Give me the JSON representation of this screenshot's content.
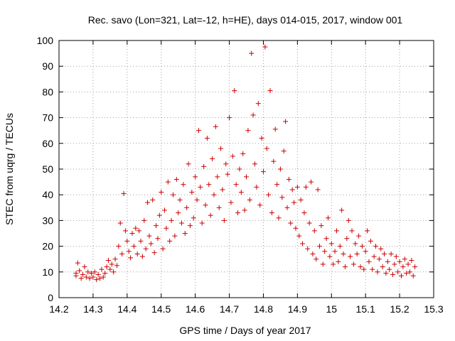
{
  "chart_data": {
    "type": "scatter",
    "title": "Rec. savo (Lon=321, Lat=-12, h=HE), days 014-015, 2017, window 001",
    "xlabel": "GPS time / Days of year 2017",
    "ylabel": "STEC from uqrg / TECUs",
    "xlim": [
      14.2,
      15.3
    ],
    "ylim": [
      0,
      100
    ],
    "xticks": [
      "14.2",
      "14.3",
      "14.4",
      "14.5",
      "14.6",
      "14.7",
      "14.8",
      "14.9",
      "15",
      "15.1",
      "15.2",
      "15.3"
    ],
    "xtick_values": [
      14.2,
      14.3,
      14.4,
      14.5,
      14.6,
      14.7,
      14.8,
      14.9,
      15.0,
      15.1,
      15.2,
      15.3
    ],
    "yticks": [
      "0",
      "10",
      "20",
      "30",
      "40",
      "50",
      "60",
      "70",
      "80",
      "90",
      "100"
    ],
    "ytick_values": [
      0,
      10,
      20,
      30,
      40,
      50,
      60,
      70,
      80,
      90,
      100
    ],
    "grid": true,
    "marker": "plus",
    "color": "#cc0000",
    "series": [
      {
        "name": "STEC",
        "points": [
          [
            14.25,
            8.5
          ],
          [
            14.25,
            9.5
          ],
          [
            14.255,
            13.5
          ],
          [
            14.26,
            10.5
          ],
          [
            14.265,
            7.5
          ],
          [
            14.27,
            9
          ],
          [
            14.275,
            12
          ],
          [
            14.28,
            8
          ],
          [
            14.285,
            10
          ],
          [
            14.29,
            7.5
          ],
          [
            14.295,
            9.5
          ],
          [
            14.3,
            8
          ],
          [
            14.305,
            10
          ],
          [
            14.31,
            7
          ],
          [
            14.315,
            9
          ],
          [
            14.32,
            7.5
          ],
          [
            14.325,
            11
          ],
          [
            14.33,
            8
          ],
          [
            14.335,
            9.5
          ],
          [
            14.34,
            12
          ],
          [
            14.345,
            14.5
          ],
          [
            14.35,
            11
          ],
          [
            14.355,
            13
          ],
          [
            14.36,
            10
          ],
          [
            14.365,
            15
          ],
          [
            14.37,
            12.5
          ],
          [
            14.375,
            20
          ],
          [
            14.38,
            29
          ],
          [
            14.385,
            17
          ],
          [
            14.39,
            40.5
          ],
          [
            14.395,
            26
          ],
          [
            14.4,
            22
          ],
          [
            14.405,
            18
          ],
          [
            14.41,
            15.5
          ],
          [
            14.415,
            25
          ],
          [
            14.42,
            20
          ],
          [
            14.425,
            27
          ],
          [
            14.43,
            17
          ],
          [
            14.435,
            26
          ],
          [
            14.44,
            22
          ],
          [
            14.445,
            16
          ],
          [
            14.45,
            30
          ],
          [
            14.455,
            19
          ],
          [
            14.46,
            37
          ],
          [
            14.465,
            24
          ],
          [
            14.47,
            21
          ],
          [
            14.475,
            38
          ],
          [
            14.48,
            17.5
          ],
          [
            14.485,
            28
          ],
          [
            14.49,
            23
          ],
          [
            14.495,
            32
          ],
          [
            14.5,
            41
          ],
          [
            14.505,
            19
          ],
          [
            14.51,
            34
          ],
          [
            14.515,
            27
          ],
          [
            14.52,
            45
          ],
          [
            14.525,
            22
          ],
          [
            14.53,
            30
          ],
          [
            14.535,
            40
          ],
          [
            14.54,
            24
          ],
          [
            14.545,
            46
          ],
          [
            14.55,
            33
          ],
          [
            14.555,
            38
          ],
          [
            14.56,
            29
          ],
          [
            14.565,
            44
          ],
          [
            14.57,
            25
          ],
          [
            14.575,
            35
          ],
          [
            14.58,
            52
          ],
          [
            14.585,
            28
          ],
          [
            14.59,
            41
          ],
          [
            14.595,
            31
          ],
          [
            14.6,
            47
          ],
          [
            14.605,
            38
          ],
          [
            14.61,
            65
          ],
          [
            14.615,
            43
          ],
          [
            14.62,
            29
          ],
          [
            14.625,
            51
          ],
          [
            14.63,
            36
          ],
          [
            14.635,
            62
          ],
          [
            14.64,
            44
          ],
          [
            14.645,
            32
          ],
          [
            14.65,
            54
          ],
          [
            14.655,
            40
          ],
          [
            14.66,
            66.5
          ],
          [
            14.665,
            47
          ],
          [
            14.67,
            35
          ],
          [
            14.675,
            58
          ],
          [
            14.68,
            42
          ],
          [
            14.685,
            30
          ],
          [
            14.69,
            52
          ],
          [
            14.695,
            48
          ],
          [
            14.7,
            70
          ],
          [
            14.705,
            37
          ],
          [
            14.71,
            55
          ],
          [
            14.715,
            80.5
          ],
          [
            14.72,
            44
          ],
          [
            14.725,
            33
          ],
          [
            14.73,
            50
          ],
          [
            14.735,
            41
          ],
          [
            14.74,
            56
          ],
          [
            14.745,
            34
          ],
          [
            14.75,
            47
          ],
          [
            14.755,
            65
          ],
          [
            14.76,
            38
          ],
          [
            14.765,
            95
          ],
          [
            14.77,
            71
          ],
          [
            14.775,
            52
          ],
          [
            14.78,
            43
          ],
          [
            14.785,
            75.5
          ],
          [
            14.79,
            36
          ],
          [
            14.795,
            62
          ],
          [
            14.8,
            49
          ],
          [
            14.805,
            97.5
          ],
          [
            14.81,
            58
          ],
          [
            14.815,
            40
          ],
          [
            14.82,
            80.5
          ],
          [
            14.825,
            33
          ],
          [
            14.83,
            53
          ],
          [
            14.835,
            65.5
          ],
          [
            14.84,
            44
          ],
          [
            14.845,
            31
          ],
          [
            14.85,
            50
          ],
          [
            14.855,
            39
          ],
          [
            14.86,
            57
          ],
          [
            14.865,
            68.5
          ],
          [
            14.87,
            35
          ],
          [
            14.875,
            46
          ],
          [
            14.88,
            29
          ],
          [
            14.885,
            42
          ],
          [
            14.89,
            37
          ],
          [
            14.895,
            27
          ],
          [
            14.9,
            43
          ],
          [
            14.905,
            24
          ],
          [
            14.91,
            38
          ],
          [
            14.915,
            21
          ],
          [
            14.92,
            33
          ],
          [
            14.925,
            43
          ],
          [
            14.93,
            19
          ],
          [
            14.935,
            29
          ],
          [
            14.94,
            45
          ],
          [
            14.945,
            17
          ],
          [
            14.95,
            26
          ],
          [
            14.955,
            15
          ],
          [
            14.96,
            42
          ],
          [
            14.965,
            20
          ],
          [
            14.97,
            28
          ],
          [
            14.975,
            13
          ],
          [
            14.98,
            18
          ],
          [
            14.985,
            23
          ],
          [
            14.99,
            31
          ],
          [
            14.995,
            16
          ],
          [
            15.0,
            21
          ],
          [
            15.005,
            13
          ],
          [
            15.01,
            18
          ],
          [
            15.015,
            26
          ],
          [
            15.02,
            14
          ],
          [
            15.025,
            20
          ],
          [
            15.03,
            34
          ],
          [
            15.035,
            17
          ],
          [
            15.04,
            12
          ],
          [
            15.045,
            23
          ],
          [
            15.05,
            30
          ],
          [
            15.055,
            16
          ],
          [
            15.06,
            26
          ],
          [
            15.065,
            13
          ],
          [
            15.07,
            21
          ],
          [
            15.075,
            17
          ],
          [
            15.08,
            24
          ],
          [
            15.085,
            12
          ],
          [
            15.09,
            20
          ],
          [
            15.095,
            11
          ],
          [
            15.1,
            18
          ],
          [
            15.105,
            26
          ],
          [
            15.11,
            14
          ],
          [
            15.115,
            22
          ],
          [
            15.12,
            11
          ],
          [
            15.125,
            16
          ],
          [
            15.13,
            20
          ],
          [
            15.135,
            10
          ],
          [
            15.14,
            15
          ],
          [
            15.145,
            19
          ],
          [
            15.15,
            12
          ],
          [
            15.155,
            17
          ],
          [
            15.16,
            9.5
          ],
          [
            15.165,
            14
          ],
          [
            15.17,
            11
          ],
          [
            15.175,
            17
          ],
          [
            15.18,
            9
          ],
          [
            15.185,
            13
          ],
          [
            15.19,
            16
          ],
          [
            15.195,
            10
          ],
          [
            15.2,
            14
          ],
          [
            15.205,
            8.5
          ],
          [
            15.21,
            12
          ],
          [
            15.215,
            15
          ],
          [
            15.22,
            9.5
          ],
          [
            15.225,
            13
          ],
          [
            15.23,
            10
          ],
          [
            15.235,
            14.5
          ],
          [
            15.24,
            8.5
          ],
          [
            15.245,
            12
          ]
        ]
      }
    ]
  }
}
